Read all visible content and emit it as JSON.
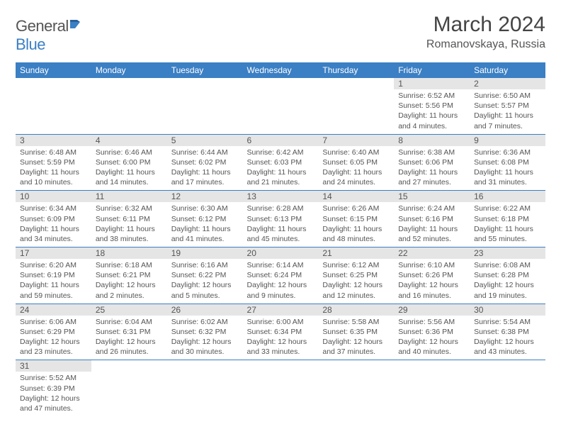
{
  "logo": {
    "text1": "General",
    "text2": "Blue"
  },
  "title": "March 2024",
  "location": "Romanovskaya, Russia",
  "colors": {
    "header_bg": "#3b7fc4",
    "header_fg": "#ffffff",
    "daynum_bg": "#e5e5e5",
    "border": "#3b7fc4",
    "text": "#555555",
    "background": "#ffffff"
  },
  "weekdays": [
    "Sunday",
    "Monday",
    "Tuesday",
    "Wednesday",
    "Thursday",
    "Friday",
    "Saturday"
  ],
  "weeks": [
    [
      null,
      null,
      null,
      null,
      null,
      {
        "d": "1",
        "sr": "6:52 AM",
        "ss": "5:56 PM",
        "dl": "11 hours and 4 minutes."
      },
      {
        "d": "2",
        "sr": "6:50 AM",
        "ss": "5:57 PM",
        "dl": "11 hours and 7 minutes."
      }
    ],
    [
      {
        "d": "3",
        "sr": "6:48 AM",
        "ss": "5:59 PM",
        "dl": "11 hours and 10 minutes."
      },
      {
        "d": "4",
        "sr": "6:46 AM",
        "ss": "6:00 PM",
        "dl": "11 hours and 14 minutes."
      },
      {
        "d": "5",
        "sr": "6:44 AM",
        "ss": "6:02 PM",
        "dl": "11 hours and 17 minutes."
      },
      {
        "d": "6",
        "sr": "6:42 AM",
        "ss": "6:03 PM",
        "dl": "11 hours and 21 minutes."
      },
      {
        "d": "7",
        "sr": "6:40 AM",
        "ss": "6:05 PM",
        "dl": "11 hours and 24 minutes."
      },
      {
        "d": "8",
        "sr": "6:38 AM",
        "ss": "6:06 PM",
        "dl": "11 hours and 27 minutes."
      },
      {
        "d": "9",
        "sr": "6:36 AM",
        "ss": "6:08 PM",
        "dl": "11 hours and 31 minutes."
      }
    ],
    [
      {
        "d": "10",
        "sr": "6:34 AM",
        "ss": "6:09 PM",
        "dl": "11 hours and 34 minutes."
      },
      {
        "d": "11",
        "sr": "6:32 AM",
        "ss": "6:11 PM",
        "dl": "11 hours and 38 minutes."
      },
      {
        "d": "12",
        "sr": "6:30 AM",
        "ss": "6:12 PM",
        "dl": "11 hours and 41 minutes."
      },
      {
        "d": "13",
        "sr": "6:28 AM",
        "ss": "6:13 PM",
        "dl": "11 hours and 45 minutes."
      },
      {
        "d": "14",
        "sr": "6:26 AM",
        "ss": "6:15 PM",
        "dl": "11 hours and 48 minutes."
      },
      {
        "d": "15",
        "sr": "6:24 AM",
        "ss": "6:16 PM",
        "dl": "11 hours and 52 minutes."
      },
      {
        "d": "16",
        "sr": "6:22 AM",
        "ss": "6:18 PM",
        "dl": "11 hours and 55 minutes."
      }
    ],
    [
      {
        "d": "17",
        "sr": "6:20 AM",
        "ss": "6:19 PM",
        "dl": "11 hours and 59 minutes."
      },
      {
        "d": "18",
        "sr": "6:18 AM",
        "ss": "6:21 PM",
        "dl": "12 hours and 2 minutes."
      },
      {
        "d": "19",
        "sr": "6:16 AM",
        "ss": "6:22 PM",
        "dl": "12 hours and 5 minutes."
      },
      {
        "d": "20",
        "sr": "6:14 AM",
        "ss": "6:24 PM",
        "dl": "12 hours and 9 minutes."
      },
      {
        "d": "21",
        "sr": "6:12 AM",
        "ss": "6:25 PM",
        "dl": "12 hours and 12 minutes."
      },
      {
        "d": "22",
        "sr": "6:10 AM",
        "ss": "6:26 PM",
        "dl": "12 hours and 16 minutes."
      },
      {
        "d": "23",
        "sr": "6:08 AM",
        "ss": "6:28 PM",
        "dl": "12 hours and 19 minutes."
      }
    ],
    [
      {
        "d": "24",
        "sr": "6:06 AM",
        "ss": "6:29 PM",
        "dl": "12 hours and 23 minutes."
      },
      {
        "d": "25",
        "sr": "6:04 AM",
        "ss": "6:31 PM",
        "dl": "12 hours and 26 minutes."
      },
      {
        "d": "26",
        "sr": "6:02 AM",
        "ss": "6:32 PM",
        "dl": "12 hours and 30 minutes."
      },
      {
        "d": "27",
        "sr": "6:00 AM",
        "ss": "6:34 PM",
        "dl": "12 hours and 33 minutes."
      },
      {
        "d": "28",
        "sr": "5:58 AM",
        "ss": "6:35 PM",
        "dl": "12 hours and 37 minutes."
      },
      {
        "d": "29",
        "sr": "5:56 AM",
        "ss": "6:36 PM",
        "dl": "12 hours and 40 minutes."
      },
      {
        "d": "30",
        "sr": "5:54 AM",
        "ss": "6:38 PM",
        "dl": "12 hours and 43 minutes."
      }
    ],
    [
      {
        "d": "31",
        "sr": "5:52 AM",
        "ss": "6:39 PM",
        "dl": "12 hours and 47 minutes."
      },
      null,
      null,
      null,
      null,
      null,
      null
    ]
  ],
  "labels": {
    "sunrise": "Sunrise: ",
    "sunset": "Sunset: ",
    "daylight": "Daylight: "
  }
}
